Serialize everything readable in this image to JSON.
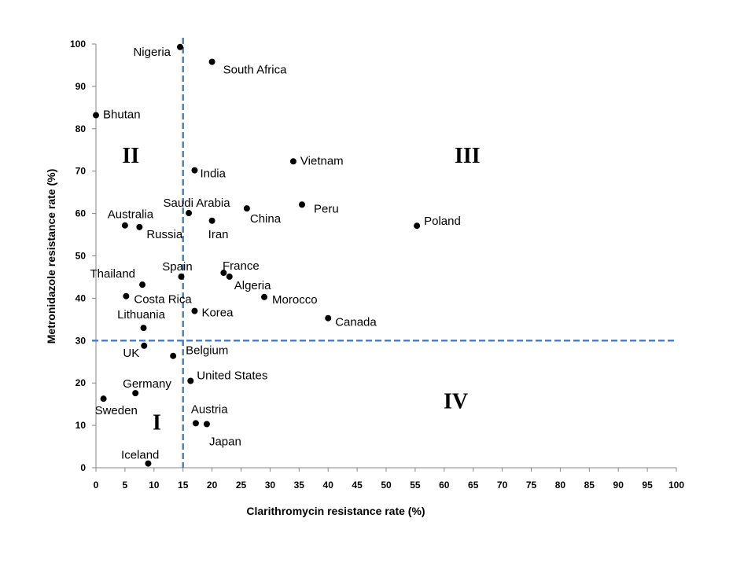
{
  "chart_data": {
    "type": "scatter",
    "xlabel": "Clarithromycin resistance rate (%)",
    "ylabel": "Metronidazole resistance rate (%)",
    "xlim": [
      0,
      100
    ],
    "ylim": [
      0,
      100
    ],
    "x_ticks": [
      0,
      5,
      10,
      15,
      20,
      25,
      30,
      35,
      40,
      45,
      50,
      55,
      60,
      65,
      70,
      75,
      80,
      85,
      90,
      95,
      100
    ],
    "y_ticks": [
      0,
      10,
      20,
      30,
      40,
      50,
      60,
      70,
      80,
      90,
      100
    ],
    "grid": false,
    "reference_lines": {
      "x": 15,
      "y": 30,
      "style": "dashed",
      "color": "#4f81bd"
    },
    "quadrant_labels": [
      {
        "text": "I",
        "x": 10.5,
        "y": 9
      },
      {
        "text": "II",
        "x": 6,
        "y": 72
      },
      {
        "text": "III",
        "x": 64,
        "y": 72
      },
      {
        "text": "IV",
        "x": 62,
        "y": 14
      }
    ],
    "point_color": "#000000",
    "points": [
      {
        "label": "Nigeria",
        "x": 14.5,
        "y": 99.3,
        "anchor": "end",
        "dx": -12,
        "dy": 11
      },
      {
        "label": "South Africa",
        "x": 20,
        "y": 95.8,
        "anchor": "start",
        "dx": 14,
        "dy": 15
      },
      {
        "label": "Bhutan",
        "x": 0,
        "y": 83.2,
        "anchor": "start",
        "dx": 9,
        "dy": 4
      },
      {
        "label": "India",
        "x": 17,
        "y": 70.2,
        "anchor": "start",
        "dx": 7,
        "dy": 9
      },
      {
        "label": "Vietnam",
        "x": 34,
        "y": 72.3,
        "anchor": "start",
        "dx": 9,
        "dy": 4
      },
      {
        "label": "Saudi Arabia",
        "x": 16,
        "y": 60.1,
        "anchor": "middle",
        "dx": 10,
        "dy": -8
      },
      {
        "label": "China",
        "x": 26,
        "y": 61.2,
        "anchor": "start",
        "dx": 4,
        "dy": 18
      },
      {
        "label": "Peru",
        "x": 35.5,
        "y": 62.1,
        "anchor": "start",
        "dx": 15,
        "dy": 10
      },
      {
        "label": "Australia",
        "x": 5,
        "y": 57.2,
        "anchor": "middle",
        "dx": 7,
        "dy": -9
      },
      {
        "label": "Russia",
        "x": 7.5,
        "y": 56.8,
        "anchor": "start",
        "dx": 9,
        "dy": 14
      },
      {
        "label": "Iran",
        "x": 20,
        "y": 58.3,
        "anchor": "middle",
        "dx": 8,
        "dy": 22
      },
      {
        "label": "Poland",
        "x": 55.3,
        "y": 57.1,
        "anchor": "start",
        "dx": 9,
        "dy": -1
      },
      {
        "label": "Spain",
        "x": 14.7,
        "y": 45.1,
        "anchor": "middle",
        "dx": -5,
        "dy": -8
      },
      {
        "label": "France",
        "x": 22,
        "y": 46,
        "anchor": "middle",
        "dx": 22,
        "dy": -4
      },
      {
        "label": "Algeria",
        "x": 23,
        "y": 45.1,
        "anchor": "start",
        "dx": 6,
        "dy": 16
      },
      {
        "label": "Thailand",
        "x": 8,
        "y": 43.2,
        "anchor": "end",
        "dx": -9,
        "dy": -9
      },
      {
        "label": "Costa Rica",
        "x": 5.2,
        "y": 40.5,
        "anchor": "start",
        "dx": 10,
        "dy": 9
      },
      {
        "label": "Morocco",
        "x": 29,
        "y": 40.3,
        "anchor": "start",
        "dx": 10,
        "dy": 8
      },
      {
        "label": "Korea",
        "x": 17,
        "y": 37,
        "anchor": "start",
        "dx": 9,
        "dy": 7
      },
      {
        "label": "Canada",
        "x": 40,
        "y": 35.3,
        "anchor": "start",
        "dx": 9,
        "dy": 10
      },
      {
        "label": "Lithuania",
        "x": 8.2,
        "y": 33,
        "anchor": "middle",
        "dx": -3,
        "dy": -12
      },
      {
        "label": "UK",
        "x": 8.3,
        "y": 28.8,
        "anchor": "end",
        "dx": -6,
        "dy": 14
      },
      {
        "label": "Belgium",
        "x": 13.3,
        "y": 26.4,
        "anchor": "start",
        "dx": 16,
        "dy": -2
      },
      {
        "label": "United States",
        "x": 16.3,
        "y": 20.5,
        "anchor": "start",
        "dx": 8,
        "dy": -2
      },
      {
        "label": "Germany",
        "x": 6.8,
        "y": 17.6,
        "anchor": "start",
        "dx": -16,
        "dy": -7
      },
      {
        "label": "Sweden",
        "x": 1.3,
        "y": 16.3,
        "anchor": "start",
        "dx": -11,
        "dy": 20
      },
      {
        "label": "Austria",
        "x": 17.2,
        "y": 10.5,
        "anchor": "start",
        "dx": -6,
        "dy": -13
      },
      {
        "label": "Japan",
        "x": 19.1,
        "y": 10.3,
        "anchor": "start",
        "dx": 3,
        "dy": 27
      },
      {
        "label": "Iceland",
        "x": 9,
        "y": 1,
        "anchor": "end",
        "dx": 14,
        "dy": -6
      }
    ]
  }
}
